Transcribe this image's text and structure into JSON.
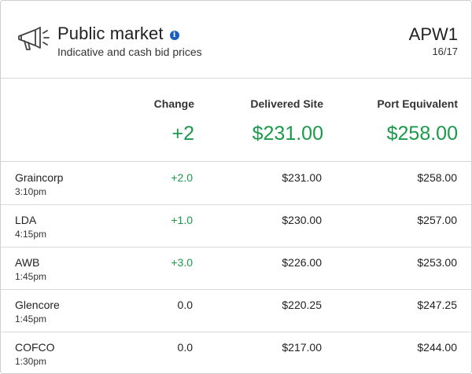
{
  "header": {
    "title": "Public market",
    "subtitle": "Indicative and cash bid prices",
    "code": "APW1",
    "season": "16/17",
    "icons": {
      "main": "megaphone-icon",
      "info": "info-icon"
    }
  },
  "summary": {
    "columns": [
      "Change",
      "Delivered Site",
      "Port Equivalent"
    ],
    "values": [
      "+2",
      "$231.00",
      "$258.00"
    ]
  },
  "colors": {
    "positive": "#1a9a4a",
    "info": "#1a5fbf"
  },
  "rows": [
    {
      "name": "Graincorp",
      "time": "3:10pm",
      "change": "+2.0",
      "delivered": "$231.00",
      "port": "$258.00",
      "positive": true
    },
    {
      "name": "LDA",
      "time": "4:15pm",
      "change": "+1.0",
      "delivered": "$230.00",
      "port": "$257.00",
      "positive": true
    },
    {
      "name": "AWB",
      "time": "1:45pm",
      "change": "+3.0",
      "delivered": "$226.00",
      "port": "$253.00",
      "positive": true
    },
    {
      "name": "Glencore",
      "time": "1:45pm",
      "change": "0.0",
      "delivered": "$220.25",
      "port": "$247.25",
      "positive": false
    },
    {
      "name": "COFCO",
      "time": "1:30pm",
      "change": "0.0",
      "delivered": "$217.00",
      "port": "$244.00",
      "positive": false
    }
  ]
}
